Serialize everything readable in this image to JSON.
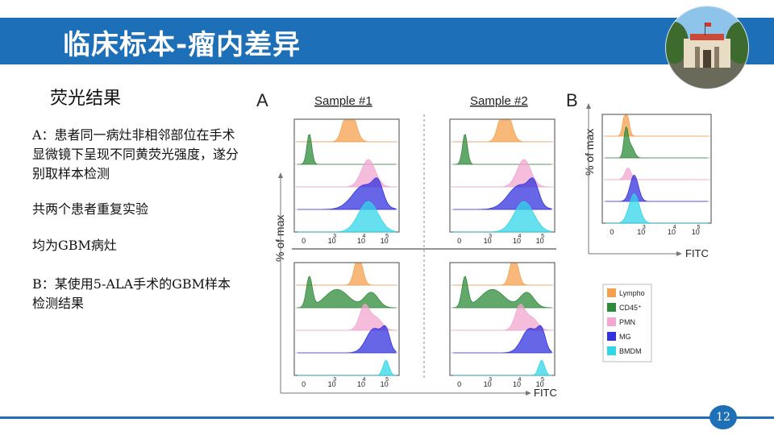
{
  "slide": {
    "title": "临床标本-瘤内差异",
    "subtitle": "荧光结果",
    "paragraphs": [
      "A：患者同一病灶非相邻部位在手术显微镜下呈现不同黄荧光强度，遂分别取样本检测",
      "共两个患者重复实验",
      "均为GBM病灶",
      "B：某使用5-ALA手术的GBM样本检测结果"
    ],
    "page_number": "12"
  },
  "figure": {
    "panel_a_label": "A",
    "panel_b_label": "B",
    "sample_1_label": "Sample #1",
    "sample_2_label": "Sample #2",
    "y_axis_label": "% of max",
    "x_axis_label": "FITC",
    "tick_labels": [
      "0",
      "10",
      "3",
      "10",
      "4",
      "10",
      "5"
    ],
    "legend": [
      {
        "label": "Lympho",
        "color": "#f6a04d"
      },
      {
        "label": "CD45⁺",
        "color": "#2e8b3a"
      },
      {
        "label": "PMN",
        "color": "#f3a6cf"
      },
      {
        "label": "MG",
        "color": "#3333dd"
      },
      {
        "label": "BMDM",
        "color": "#33d6e8"
      }
    ]
  }
}
